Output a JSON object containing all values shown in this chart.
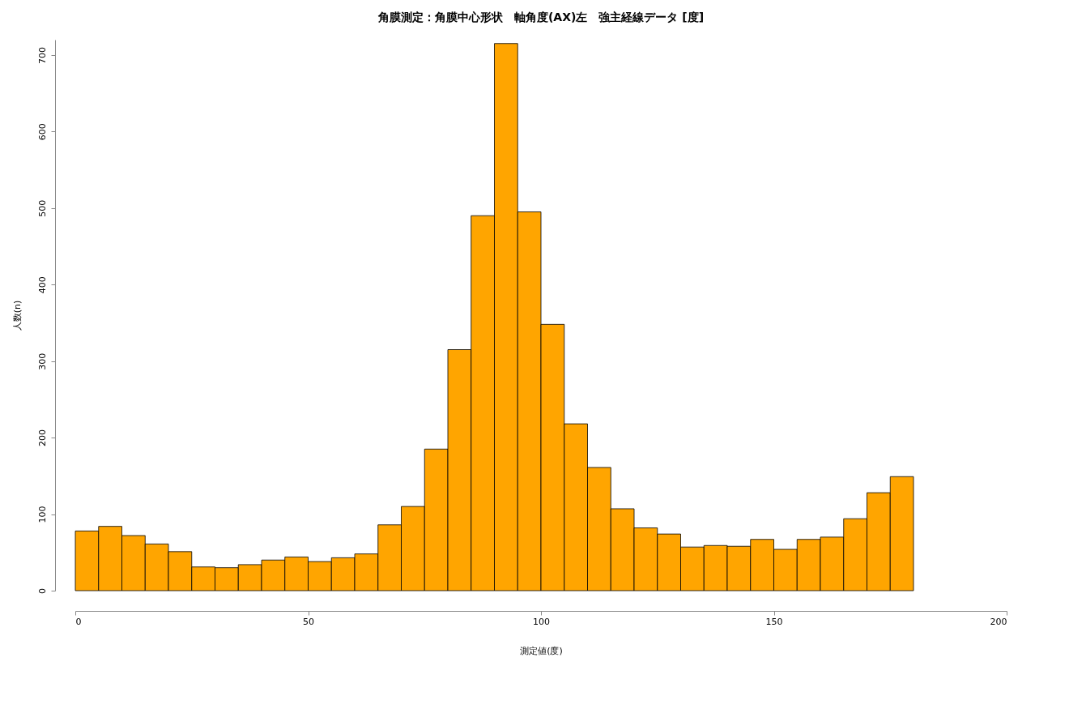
{
  "chart_data": {
    "type": "histogram",
    "title": "角膜測定：角膜中心形状　軸角度(AX)左　強主経線データ [度]",
    "xlabel": "測定値(度)",
    "ylabel": "人数(n)",
    "bins": [
      0,
      5,
      10,
      15,
      20,
      25,
      30,
      35,
      40,
      45,
      50,
      55,
      60,
      65,
      70,
      75,
      80,
      85,
      90,
      95,
      100,
      105,
      110,
      115,
      120,
      125,
      130,
      135,
      140,
      145,
      150,
      155,
      160,
      165,
      170,
      175,
      180
    ],
    "values": [
      78,
      84,
      72,
      61,
      51,
      31,
      30,
      34,
      40,
      44,
      38,
      43,
      48,
      86,
      110,
      185,
      315,
      490,
      715,
      495,
      348,
      218,
      161,
      107,
      82,
      74,
      57,
      59,
      58,
      67,
      54,
      67,
      70,
      94,
      128,
      149
    ],
    "color": "#ffa500",
    "xlim": [
      0,
      200
    ],
    "xticks": [
      0,
      50,
      100,
      150,
      200
    ],
    "ylim": [
      0,
      720
    ],
    "yticks": [
      0,
      100,
      200,
      300,
      400,
      500,
      600,
      700
    ],
    "grid": false
  }
}
